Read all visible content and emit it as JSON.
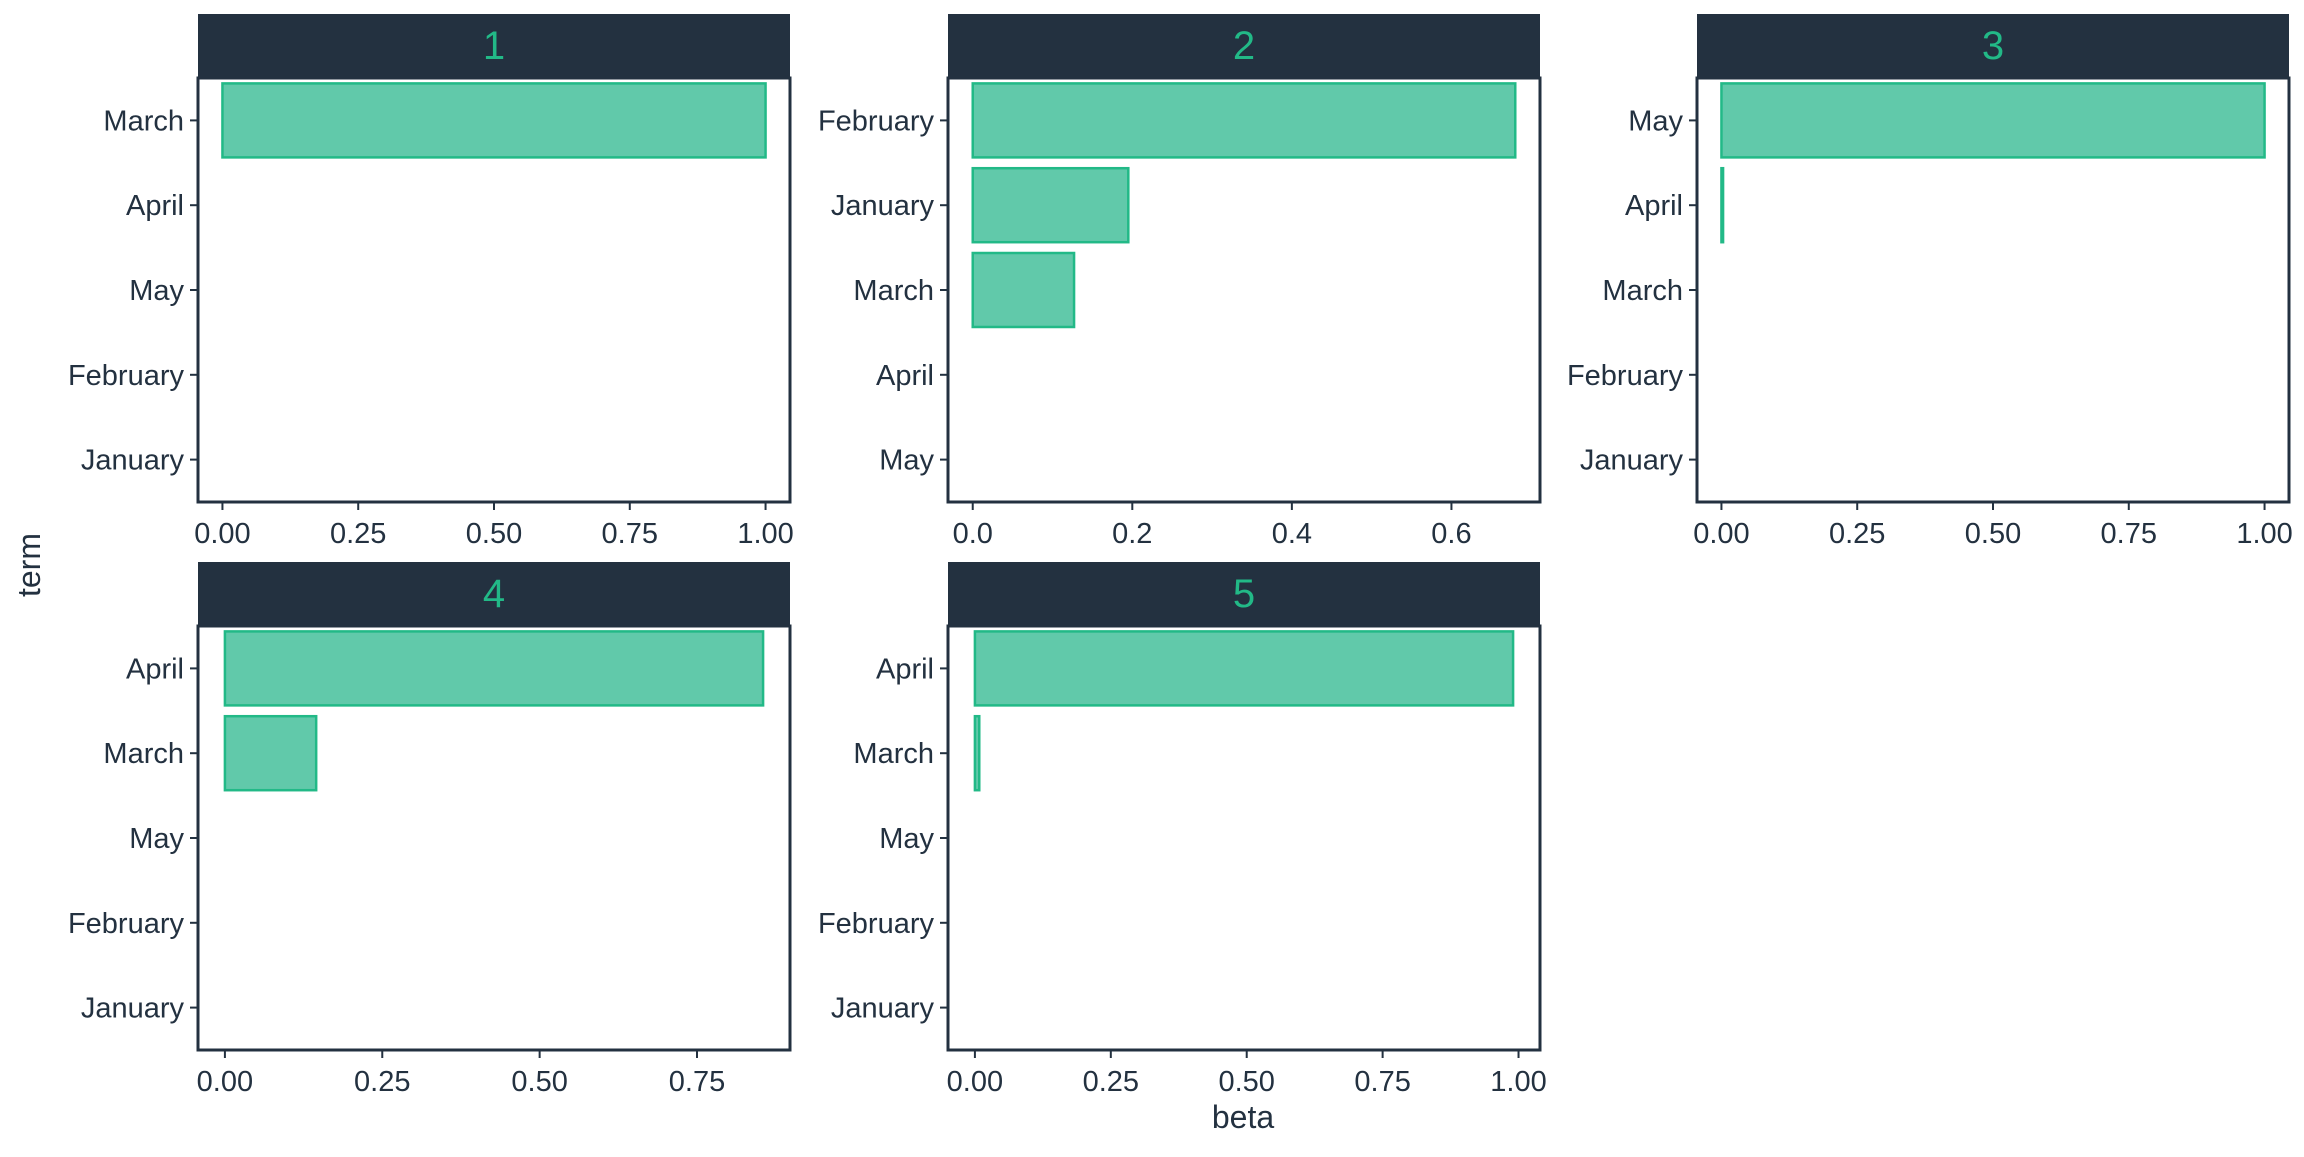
{
  "colors": {
    "strip_fill": "#233140",
    "strip_text": "#22B987",
    "bar_fill": "#61C9AA",
    "bar_stroke": "#22B987",
    "panel_border": "#233140",
    "axis_text": "#233140"
  },
  "axis_titles": {
    "x": "beta",
    "y": "term"
  },
  "chart_data": [
    {
      "type": "bar",
      "orientation": "horizontal",
      "facet": "1",
      "categories": [
        "March",
        "April",
        "May",
        "February",
        "January"
      ],
      "values": [
        1.0,
        0.0,
        0.0,
        0.0,
        0.0
      ],
      "xlim": [
        -0.045,
        1.045
      ],
      "xticks": [
        0,
        0.25,
        0.5,
        0.75,
        1.0
      ],
      "xtick_labels": [
        "0.00",
        "0.25",
        "0.50",
        "0.75",
        "1.00"
      ]
    },
    {
      "type": "bar",
      "orientation": "horizontal",
      "facet": "2",
      "categories": [
        "February",
        "January",
        "March",
        "April",
        "May"
      ],
      "values": [
        0.68,
        0.195,
        0.127,
        0.0,
        0.0
      ],
      "xlim": [
        -0.031,
        0.711
      ],
      "xticks": [
        0,
        0.2,
        0.4,
        0.6
      ],
      "xtick_labels": [
        "0.0",
        "0.2",
        "0.4",
        "0.6"
      ]
    },
    {
      "type": "bar",
      "orientation": "horizontal",
      "facet": "3",
      "categories": [
        "May",
        "April",
        "March",
        "February",
        "January"
      ],
      "values": [
        1.0,
        0.003,
        0.0,
        0.0,
        0.0
      ],
      "xlim": [
        -0.045,
        1.045
      ],
      "xticks": [
        0,
        0.25,
        0.5,
        0.75,
        1.0
      ],
      "xtick_labels": [
        "0.00",
        "0.25",
        "0.50",
        "0.75",
        "1.00"
      ]
    },
    {
      "type": "bar",
      "orientation": "horizontal",
      "facet": "4",
      "categories": [
        "April",
        "March",
        "May",
        "February",
        "January"
      ],
      "values": [
        0.855,
        0.145,
        0.0,
        0.0,
        0.0
      ],
      "xlim": [
        -0.04275,
        0.89775
      ],
      "xticks": [
        0,
        0.25,
        0.5,
        0.75
      ],
      "xtick_labels": [
        "0.00",
        "0.25",
        "0.50",
        "0.75"
      ]
    },
    {
      "type": "bar",
      "orientation": "horizontal",
      "facet": "5",
      "categories": [
        "April",
        "March",
        "May",
        "February",
        "January"
      ],
      "values": [
        0.99,
        0.008,
        0.0,
        0.0,
        0.0
      ],
      "xlim": [
        -0.0495,
        1.0395
      ],
      "xticks": [
        0,
        0.25,
        0.5,
        0.75,
        1.0
      ],
      "xtick_labels": [
        "0.00",
        "0.25",
        "0.50",
        "0.75",
        "1.00"
      ]
    }
  ]
}
